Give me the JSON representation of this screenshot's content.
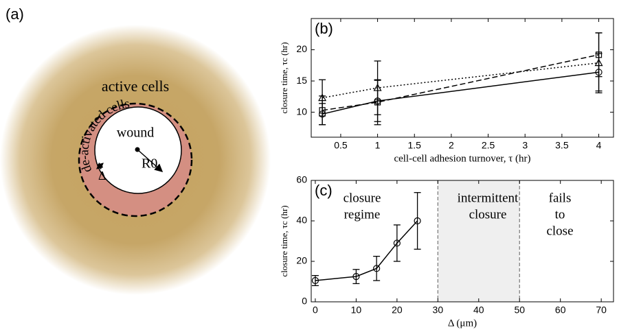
{
  "panel_a": {
    "label": "(a)",
    "outer": "active cells",
    "ring": "de-activated cells",
    "wound": "wound",
    "radius": "R0",
    "width": "Δ"
  },
  "chart_data": [
    {
      "type": "line",
      "label": "(b)",
      "xlabel": "cell-cell adhesion turnover, τ (hr)",
      "ylabel": "closure time, τc (hr)",
      "x": [
        0.25,
        1,
        4
      ],
      "xlim": [
        0.1,
        4.2
      ],
      "ylim": [
        6,
        25
      ],
      "xticks": [
        0.5,
        1,
        1.5,
        2,
        2.5,
        3,
        3.5,
        4
      ],
      "yticks": [
        10,
        15,
        20
      ],
      "series": [
        {
          "color": "#000000",
          "linestyle": "solid",
          "marker": "circle",
          "values": [
            9.7,
            11.8,
            16.4
          ],
          "errors": [
            1.7,
            3.3,
            3.0
          ]
        },
        {
          "color": "#000000",
          "linestyle": "dashed",
          "marker": "square",
          "values": [
            10.3,
            11.6,
            19.2
          ],
          "errors": [
            2.3,
            3.6,
            3.5
          ]
        },
        {
          "color": "#000000",
          "linestyle": "dotted",
          "marker": "triangle",
          "values": [
            12.3,
            13.9,
            17.9
          ],
          "errors": [
            2.9,
            4.3,
            4.8
          ]
        }
      ]
    },
    {
      "type": "line",
      "label": "(c)",
      "xlabel": "Δ (μm)",
      "ylabel": "closure time, τc (hr)",
      "x": [
        0,
        10,
        15,
        20,
        25
      ],
      "xlim": [
        -1,
        73
      ],
      "ylim": [
        0,
        60
      ],
      "xticks": [
        0,
        10,
        20,
        30,
        40,
        50,
        60,
        70
      ],
      "yticks": [
        0,
        20,
        40,
        60
      ],
      "shade": {
        "x": [
          30,
          50
        ],
        "color": "#efefef"
      },
      "annotations": [
        [
          "closure",
          "regime"
        ],
        [
          "intermittent",
          "closure"
        ],
        [
          "fails",
          "to",
          "close"
        ]
      ],
      "series": [
        {
          "color": "#000000",
          "linestyle": "solid",
          "marker": "circle",
          "values": [
            10.5,
            12.5,
            16.5,
            29,
            40
          ],
          "errors": [
            2.5,
            3.5,
            6,
            9,
            14
          ]
        }
      ]
    }
  ]
}
